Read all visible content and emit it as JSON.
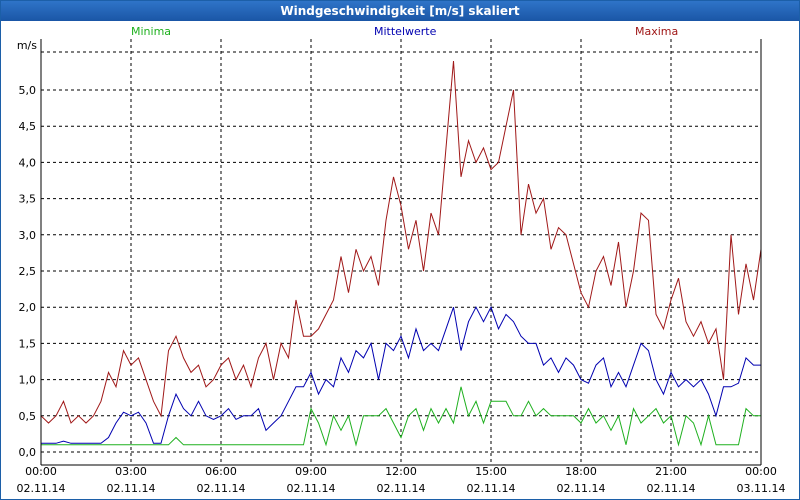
{
  "window": {
    "title": "Windgeschwindigkeit [m/s] skaliert"
  },
  "legend": {
    "min": "Minima",
    "mean": "Mittelwerte",
    "max": "Maxima"
  },
  "colors": {
    "min": "#1fb01f",
    "mean": "#0000b0",
    "max": "#a01818",
    "grid": "#000000",
    "titlebar": "#1f5fb0"
  },
  "chart_data": {
    "type": "line",
    "title": "Windgeschwindigkeit [m/s] skaliert",
    "ylabel": "m/s",
    "xlabel": "",
    "ylim": [
      -0.1,
      5.6
    ],
    "xlim_hours": [
      0,
      24
    ],
    "y_ticks": [
      "0,0",
      "0,5",
      "1,0",
      "1,5",
      "2,0",
      "2,5",
      "3,0",
      "3,5",
      "4,0",
      "4,5",
      "5,0"
    ],
    "x_ticks": [
      {
        "time": "00:00",
        "date": "02.11.14"
      },
      {
        "time": "03:00",
        "date": "02.11.14"
      },
      {
        "time": "06:00",
        "date": "02.11.14"
      },
      {
        "time": "09:00",
        "date": "02.11.14"
      },
      {
        "time": "12:00",
        "date": "02.11.14"
      },
      {
        "time": "15:00",
        "date": "02.11.14"
      },
      {
        "time": "18:00",
        "date": "02.11.14"
      },
      {
        "time": "21:00",
        "date": "02.11.14"
      },
      {
        "time": "00:00",
        "date": "03.11.14"
      }
    ],
    "grid": true,
    "series": [
      {
        "name": "Maxima",
        "x": [
          0,
          0.25,
          0.5,
          0.75,
          1,
          1.25,
          1.5,
          1.75,
          2,
          2.25,
          2.5,
          2.75,
          3,
          3.25,
          3.5,
          3.75,
          4,
          4.25,
          4.5,
          4.75,
          5,
          5.25,
          5.5,
          5.75,
          6,
          6.25,
          6.5,
          6.75,
          7,
          7.25,
          7.5,
          7.75,
          8,
          8.25,
          8.5,
          8.75,
          9,
          9.25,
          9.5,
          9.75,
          10,
          10.25,
          10.5,
          10.75,
          11,
          11.25,
          11.5,
          11.75,
          12,
          12.25,
          12.5,
          12.75,
          13,
          13.25,
          13.5,
          13.75,
          14,
          14.25,
          14.5,
          14.75,
          15,
          15.25,
          15.5,
          15.75,
          16,
          16.25,
          16.5,
          16.75,
          17,
          17.25,
          17.5,
          17.75,
          18,
          18.25,
          18.5,
          18.75,
          19,
          19.25,
          19.5,
          19.75,
          20,
          20.25,
          20.5,
          20.75,
          21,
          21.25,
          21.5,
          21.75,
          22,
          22.25,
          22.5,
          22.75,
          23,
          23.25,
          23.5,
          23.75,
          24
        ],
        "values": [
          0.5,
          0.4,
          0.5,
          0.7,
          0.4,
          0.5,
          0.4,
          0.5,
          0.7,
          1.1,
          0.9,
          1.4,
          1.2,
          1.3,
          1.0,
          0.7,
          0.5,
          1.4,
          1.6,
          1.3,
          1.1,
          1.2,
          0.9,
          1.0,
          1.2,
          1.3,
          1.0,
          1.2,
          0.9,
          1.3,
          1.5,
          1.0,
          1.5,
          1.3,
          2.1,
          1.6,
          1.6,
          1.7,
          1.9,
          2.1,
          2.7,
          2.2,
          2.8,
          2.5,
          2.7,
          2.3,
          3.2,
          3.8,
          3.4,
          2.8,
          3.2,
          2.5,
          3.3,
          3.0,
          4.2,
          5.4,
          3.8,
          4.3,
          4.0,
          4.2,
          3.9,
          4.0,
          4.5,
          5.0,
          3.0,
          3.7,
          3.3,
          3.5,
          2.8,
          3.1,
          3.0,
          2.6,
          2.2,
          2.0,
          2.5,
          2.7,
          2.3,
          2.9,
          2.0,
          2.5,
          3.3,
          3.2,
          1.9,
          1.7,
          2.1,
          2.4,
          1.8,
          1.6,
          1.8,
          1.5,
          1.7,
          1.0,
          3.0,
          1.9,
          2.6,
          2.1,
          2.8
        ]
      },
      {
        "name": "Mittelwerte",
        "x": [
          0,
          0.25,
          0.5,
          0.75,
          1,
          1.25,
          1.5,
          1.75,
          2,
          2.25,
          2.5,
          2.75,
          3,
          3.25,
          3.5,
          3.75,
          4,
          4.25,
          4.5,
          4.75,
          5,
          5.25,
          5.5,
          5.75,
          6,
          6.25,
          6.5,
          6.75,
          7,
          7.25,
          7.5,
          7.75,
          8,
          8.25,
          8.5,
          8.75,
          9,
          9.25,
          9.5,
          9.75,
          10,
          10.25,
          10.5,
          10.75,
          11,
          11.25,
          11.5,
          11.75,
          12,
          12.25,
          12.5,
          12.75,
          13,
          13.25,
          13.5,
          13.75,
          14,
          14.25,
          14.5,
          14.75,
          15,
          15.25,
          15.5,
          15.75,
          16,
          16.25,
          16.5,
          16.75,
          17,
          17.25,
          17.5,
          17.75,
          18,
          18.25,
          18.5,
          18.75,
          19,
          19.25,
          19.5,
          19.75,
          20,
          20.25,
          20.5,
          20.75,
          21,
          21.25,
          21.5,
          21.75,
          22,
          22.25,
          22.5,
          22.75,
          23,
          23.25,
          23.5,
          23.75,
          24
        ],
        "values": [
          0.12,
          0.12,
          0.12,
          0.15,
          0.12,
          0.12,
          0.12,
          0.12,
          0.12,
          0.2,
          0.4,
          0.55,
          0.5,
          0.55,
          0.4,
          0.12,
          0.12,
          0.5,
          0.8,
          0.6,
          0.5,
          0.7,
          0.5,
          0.45,
          0.5,
          0.6,
          0.45,
          0.5,
          0.5,
          0.6,
          0.3,
          0.4,
          0.5,
          0.7,
          0.9,
          0.9,
          1.1,
          0.8,
          1.0,
          0.9,
          1.3,
          1.1,
          1.4,
          1.3,
          1.5,
          1.0,
          1.5,
          1.4,
          1.6,
          1.3,
          1.7,
          1.4,
          1.5,
          1.4,
          1.7,
          2.0,
          1.4,
          1.8,
          2.0,
          1.8,
          2.0,
          1.7,
          1.9,
          1.8,
          1.6,
          1.5,
          1.5,
          1.2,
          1.3,
          1.1,
          1.3,
          1.2,
          1.0,
          0.95,
          1.2,
          1.3,
          0.9,
          1.1,
          0.9,
          1.2,
          1.5,
          1.4,
          1.0,
          0.8,
          1.1,
          0.9,
          1.0,
          0.9,
          1.0,
          0.8,
          0.5,
          0.9,
          0.9,
          0.95,
          1.3,
          1.2,
          1.2
        ]
      },
      {
        "name": "Minima",
        "x": [
          0,
          0.25,
          0.5,
          0.75,
          1,
          1.25,
          1.5,
          1.75,
          2,
          2.25,
          2.5,
          2.75,
          3,
          3.25,
          3.5,
          3.75,
          4,
          4.25,
          4.5,
          4.75,
          5,
          5.25,
          5.5,
          5.75,
          6,
          6.25,
          6.5,
          6.75,
          7,
          7.25,
          7.5,
          7.75,
          8,
          8.25,
          8.5,
          8.75,
          9,
          9.25,
          9.5,
          9.75,
          10,
          10.25,
          10.5,
          10.75,
          11,
          11.25,
          11.5,
          11.75,
          12,
          12.25,
          12.5,
          12.75,
          13,
          13.25,
          13.5,
          13.75,
          14,
          14.25,
          14.5,
          14.75,
          15,
          15.25,
          15.5,
          15.75,
          16,
          16.25,
          16.5,
          16.75,
          17,
          17.25,
          17.5,
          17.75,
          18,
          18.25,
          18.5,
          18.75,
          19,
          19.25,
          19.5,
          19.75,
          20,
          20.25,
          20.5,
          20.75,
          21,
          21.25,
          21.5,
          21.75,
          22,
          22.25,
          22.5,
          22.75,
          23,
          23.25,
          23.5,
          23.75,
          24
        ],
        "values": [
          0.1,
          0.1,
          0.1,
          0.1,
          0.1,
          0.1,
          0.1,
          0.1,
          0.1,
          0.1,
          0.1,
          0.1,
          0.1,
          0.1,
          0.1,
          0.1,
          0.1,
          0.1,
          0.2,
          0.1,
          0.1,
          0.1,
          0.1,
          0.1,
          0.1,
          0.1,
          0.1,
          0.1,
          0.1,
          0.1,
          0.1,
          0.1,
          0.1,
          0.1,
          0.1,
          0.1,
          0.6,
          0.4,
          0.1,
          0.5,
          0.3,
          0.5,
          0.1,
          0.5,
          0.5,
          0.5,
          0.6,
          0.4,
          0.2,
          0.5,
          0.6,
          0.3,
          0.6,
          0.4,
          0.6,
          0.4,
          0.9,
          0.5,
          0.7,
          0.4,
          0.7,
          0.7,
          0.7,
          0.5,
          0.5,
          0.7,
          0.5,
          0.6,
          0.5,
          0.5,
          0.5,
          0.5,
          0.4,
          0.6,
          0.4,
          0.5,
          0.3,
          0.5,
          0.1,
          0.6,
          0.4,
          0.5,
          0.6,
          0.4,
          0.5,
          0.1,
          0.5,
          0.4,
          0.1,
          0.5,
          0.1,
          0.1,
          0.1,
          0.1,
          0.6,
          0.5,
          0.5
        ]
      }
    ]
  }
}
